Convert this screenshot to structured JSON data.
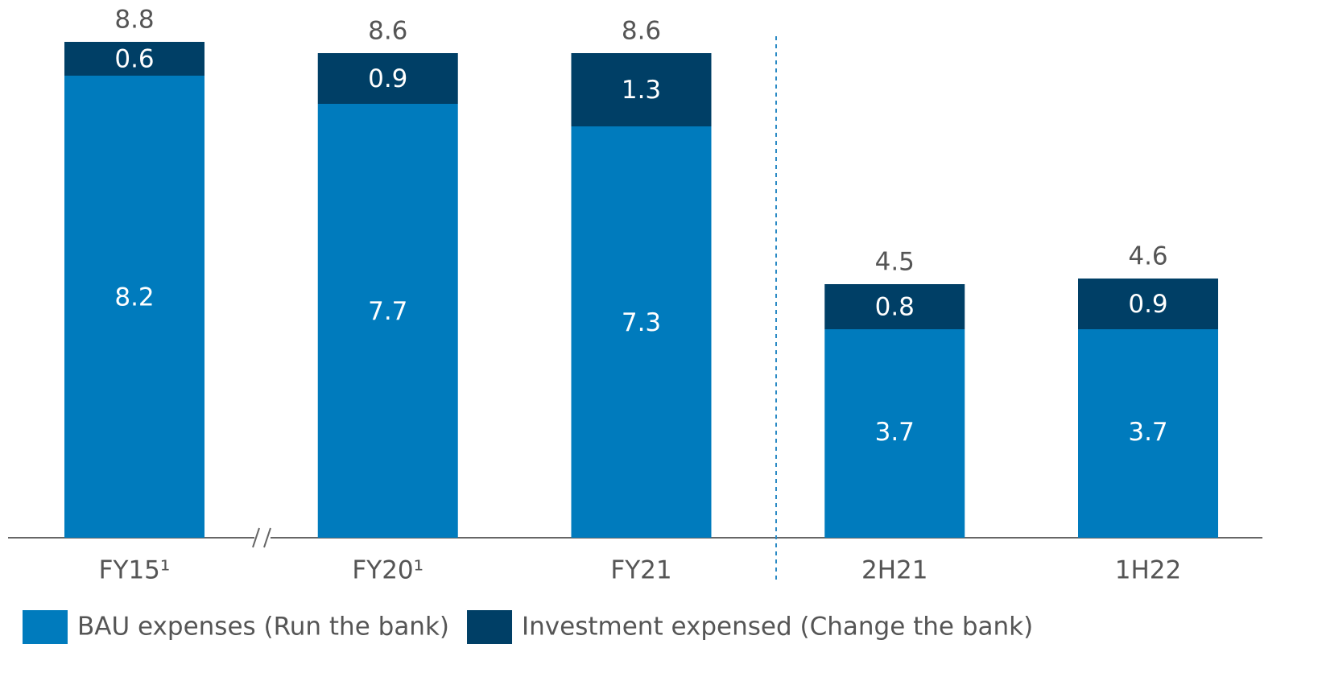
{
  "chart_data": {
    "type": "stacked_bar",
    "categories": [
      "FY15¹",
      "FY20¹",
      "FY21",
      "2H21",
      "1H22"
    ],
    "series": [
      {
        "name": "BAU expenses (Run the bank)",
        "color": "#007bbd",
        "values": [
          8.2,
          7.7,
          7.3,
          3.7,
          3.7
        ]
      },
      {
        "name": "Investment expensed (Change the bank)",
        "color": "#003f66",
        "values": [
          0.6,
          0.9,
          1.3,
          0.8,
          0.9
        ]
      }
    ],
    "totals": [
      8.8,
      8.6,
      8.6,
      4.5,
      4.6
    ],
    "ylim": [
      0,
      9.5
    ],
    "legend": "bottom-left"
  }
}
